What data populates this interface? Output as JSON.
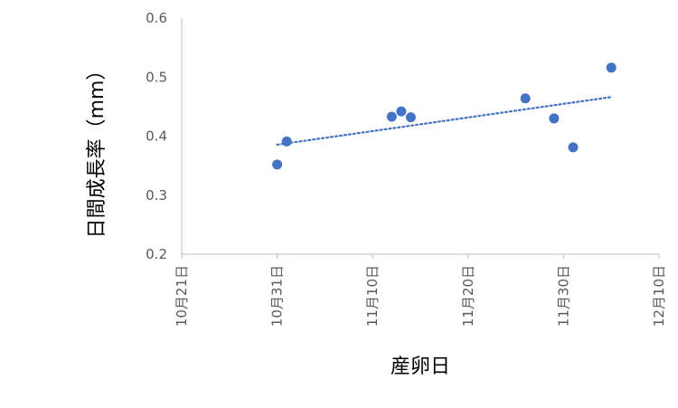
{
  "chart_data": {
    "type": "scatter",
    "xlabel": "産卵日",
    "ylabel": "日間成長率（mm）",
    "ylim": [
      0.2,
      0.6
    ],
    "yticks": [
      "0.2",
      "0.3",
      "0.4",
      "0.5",
      "0.6"
    ],
    "xticks": [
      "10月21日",
      "10月31日",
      "11月10日",
      "11月20日",
      "11月30日",
      "12月10日"
    ],
    "xlim_days": [
      0,
      50
    ],
    "series": [
      {
        "marker_color": "#4472C4",
        "points": [
          {
            "x": "10月31日",
            "day": 10.0,
            "y": 0.352
          },
          {
            "x": "11月1日",
            "day": 11.0,
            "y": 0.391
          },
          {
            "x": "11月12日",
            "day": 22.0,
            "y": 0.433
          },
          {
            "x": "11月13日",
            "day": 23.0,
            "y": 0.442
          },
          {
            "x": "11月14日",
            "day": 24.0,
            "y": 0.432
          },
          {
            "x": "11月26日",
            "day": 36.0,
            "y": 0.464
          },
          {
            "x": "11月29日",
            "day": 39.0,
            "y": 0.43
          },
          {
            "x": "12月1日",
            "day": 41.0,
            "y": 0.381
          },
          {
            "x": "12月5日",
            "day": 45.0,
            "y": 0.516
          }
        ]
      }
    ],
    "trendline": {
      "type": "linear",
      "style": "dotted",
      "color": "#4472C4",
      "from_day": 10.0,
      "to_day": 45.0
    },
    "grid": false,
    "legend": "none"
  }
}
